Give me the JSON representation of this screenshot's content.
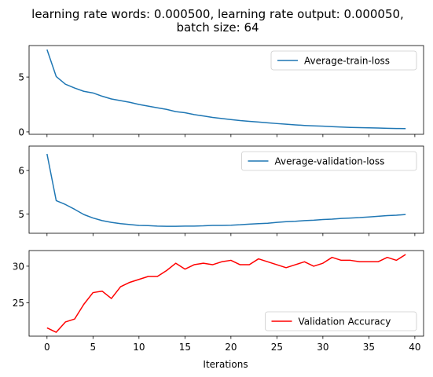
{
  "figure": {
    "title_line1": "learning rate words: 0.000500, learning rate output: 0.000050,",
    "title_line2": "batch size: 64",
    "xlabel": "Iterations",
    "xticks": [
      0,
      5,
      10,
      15,
      20,
      25,
      30,
      35,
      40
    ],
    "xlim": [
      -1.95,
      40.95
    ]
  },
  "chart_data": [
    {
      "type": "line",
      "series": [
        {
          "name": "Average-train-loss",
          "color": "#1f77b4",
          "x": [
            0,
            1,
            2,
            3,
            4,
            5,
            6,
            7,
            8,
            9,
            10,
            11,
            12,
            13,
            14,
            15,
            16,
            17,
            18,
            19,
            20,
            21,
            22,
            23,
            24,
            25,
            26,
            27,
            28,
            29,
            30,
            31,
            32,
            33,
            34,
            35,
            36,
            37,
            38,
            39
          ],
          "values": [
            7.5,
            5.05,
            4.35,
            4.0,
            3.7,
            3.55,
            3.25,
            3.0,
            2.85,
            2.7,
            2.5,
            2.35,
            2.2,
            2.05,
            1.85,
            1.75,
            1.58,
            1.45,
            1.32,
            1.22,
            1.12,
            1.03,
            0.96,
            0.9,
            0.83,
            0.76,
            0.7,
            0.64,
            0.59,
            0.55,
            0.52,
            0.48,
            0.44,
            0.41,
            0.39,
            0.37,
            0.35,
            0.33,
            0.31,
            0.3
          ]
        }
      ],
      "legend": "upper right",
      "yticks": [
        0,
        5
      ],
      "ylim": [
        -0.22,
        7.87
      ]
    },
    {
      "type": "line",
      "series": [
        {
          "name": "Average-validation-loss",
          "color": "#1f77b4",
          "x": [
            0,
            1,
            2,
            3,
            4,
            5,
            6,
            7,
            8,
            9,
            10,
            11,
            12,
            13,
            14,
            15,
            16,
            17,
            18,
            19,
            20,
            21,
            22,
            23,
            24,
            25,
            26,
            27,
            28,
            29,
            30,
            31,
            32,
            33,
            34,
            35,
            36,
            37,
            38,
            39
          ],
          "values": [
            6.38,
            5.31,
            5.22,
            5.11,
            4.99,
            4.91,
            4.85,
            4.81,
            4.78,
            4.76,
            4.74,
            4.735,
            4.725,
            4.72,
            4.72,
            4.725,
            4.725,
            4.73,
            4.74,
            4.74,
            4.745,
            4.755,
            4.77,
            4.78,
            4.79,
            4.81,
            4.825,
            4.835,
            4.85,
            4.86,
            4.875,
            4.885,
            4.9,
            4.91,
            4.92,
            4.935,
            4.95,
            4.965,
            4.975,
            4.99
          ]
        }
      ],
      "legend": "upper right",
      "yticks": [
        5,
        6
      ],
      "ylim": [
        4.56,
        6.56
      ]
    },
    {
      "type": "line",
      "series": [
        {
          "name": "Validation Accuracy",
          "color": "#ff0000",
          "x": [
            0,
            1,
            2,
            3,
            4,
            5,
            6,
            7,
            8,
            9,
            10,
            11,
            12,
            13,
            14,
            15,
            16,
            17,
            18,
            19,
            20,
            21,
            22,
            23,
            24,
            25,
            26,
            27,
            28,
            29,
            30,
            31,
            32,
            33,
            34,
            35,
            36,
            37,
            38,
            39
          ],
          "values": [
            21.6,
            21.0,
            22.4,
            22.8,
            24.8,
            26.4,
            26.6,
            25.6,
            27.2,
            27.8,
            28.2,
            28.6,
            28.6,
            29.4,
            30.4,
            29.6,
            30.2,
            30.4,
            30.2,
            30.6,
            30.8,
            30.2,
            30.2,
            31.0,
            30.6,
            30.2,
            29.8,
            30.2,
            30.6,
            30.0,
            30.4,
            31.2,
            30.8,
            30.8,
            30.6,
            30.6,
            30.6,
            31.2,
            30.8,
            31.6
          ]
        }
      ],
      "legend": "lower right",
      "yticks": [
        25,
        30
      ],
      "ylim": [
        20.47,
        32.13
      ]
    }
  ]
}
